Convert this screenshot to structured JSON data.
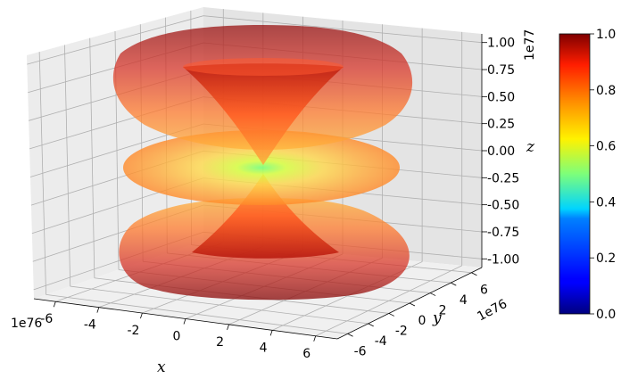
{
  "chart_data": {
    "type": "surface3d",
    "surface_opacity": "semi-transparent",
    "colormap": "jet",
    "grid": true,
    "x_axis": {
      "label": "x",
      "ticks": [
        -6,
        -4,
        -2,
        0,
        2,
        4,
        6
      ],
      "tick_labels": [
        "-6",
        "-4",
        "-2",
        "0",
        "2",
        "4",
        "6"
      ],
      "offset_text": "1e76",
      "range": [
        -7e+76,
        7e+76
      ]
    },
    "y_axis": {
      "label": "y",
      "ticks": [
        -6,
        -4,
        -2,
        0,
        2,
        4,
        6
      ],
      "tick_labels": [
        "-6",
        "-4",
        "-2",
        "0",
        "2",
        "4",
        "6"
      ],
      "offset_text": "1e76",
      "range": [
        -7e+76,
        7e+76
      ]
    },
    "z_axis": {
      "label": "z",
      "ticks": [
        -1.0,
        -0.75,
        -0.5,
        -0.25,
        0.0,
        0.25,
        0.5,
        0.75,
        1.0
      ],
      "tick_labels": [
        "-1.00",
        "-0.75",
        "-0.50",
        "-0.25",
        "0.00",
        "0.25",
        "0.50",
        "0.75",
        "1.00"
      ],
      "offset_text": "1e77",
      "range": [
        -1e+77,
        1e+77
      ]
    },
    "colorbar": {
      "ticks": [
        0.0,
        0.2,
        0.4,
        0.6,
        0.8,
        1.0
      ],
      "tick_labels": [
        "0.0",
        "0.2",
        "0.4",
        "0.6",
        "0.8",
        "1.0"
      ],
      "range": [
        0,
        1
      ]
    },
    "surfaces": [
      {
        "part": "upper-lobe",
        "z_range": [
          0.05,
          1.0
        ],
        "outer_radius_max": 6.6,
        "color_range": [
          0.62,
          0.95
        ]
      },
      {
        "part": "central-disk",
        "z": 0.0,
        "outer_radius": 6.5,
        "color_range": [
          0.58,
          0.78
        ]
      },
      {
        "part": "lower-lobe",
        "z_range": [
          -1.0,
          -0.05
        ],
        "outer_radius_max": 6.6,
        "color_range": [
          0.62,
          0.95
        ]
      }
    ]
  }
}
